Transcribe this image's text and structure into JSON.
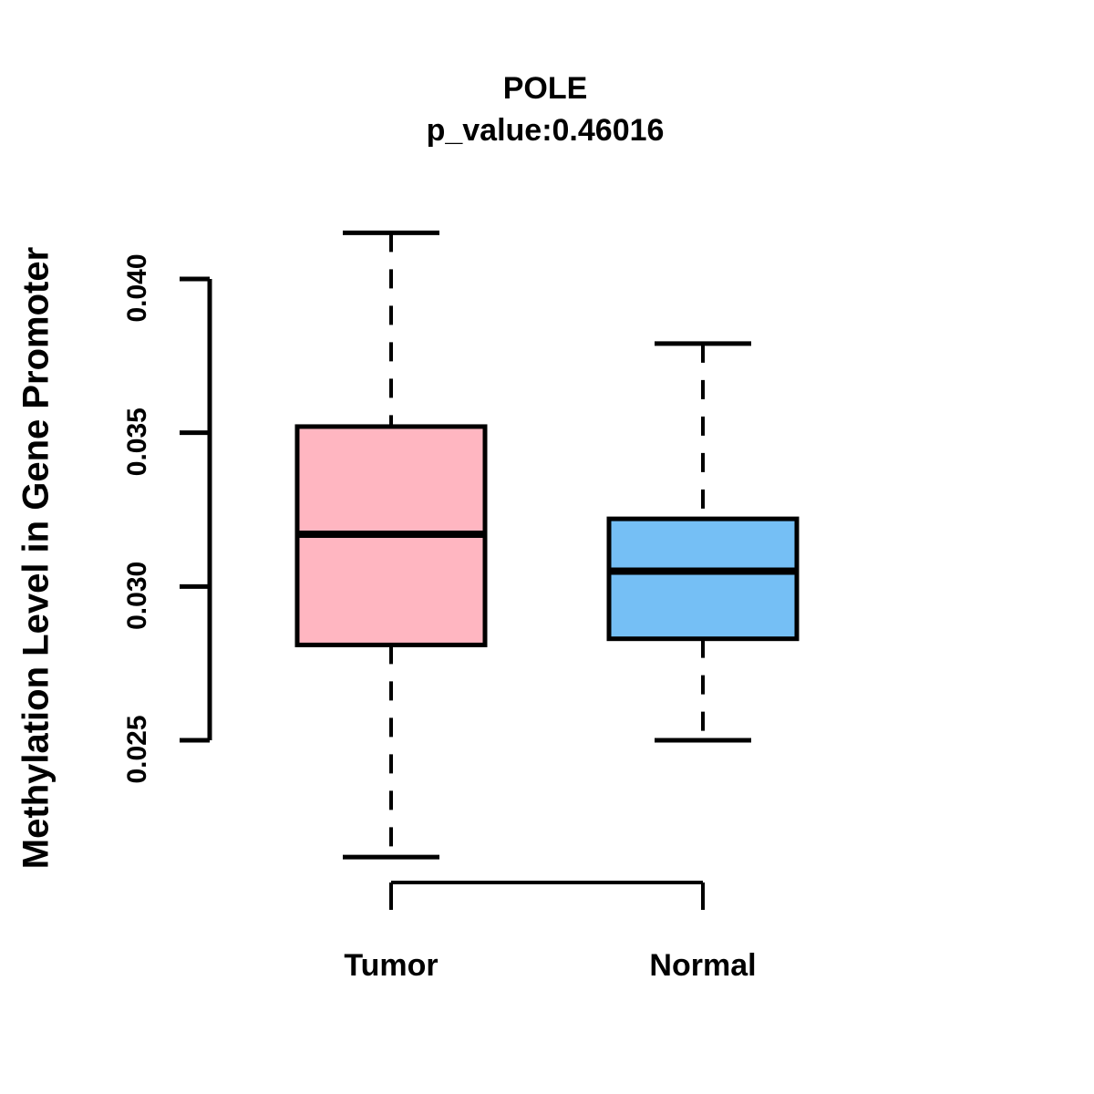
{
  "chart_data": {
    "type": "boxplot",
    "title": "POLE",
    "subtitle": "p_value:0.46016",
    "ylabel": "Methylation Level in Gene Promoter",
    "xlabel": "",
    "ylim": [
      0.025,
      0.04
    ],
    "yticks": [
      0.025,
      0.03,
      0.035,
      0.04
    ],
    "ytick_labels": [
      "0.025",
      "0.030",
      "0.035",
      "0.040"
    ],
    "categories": [
      "Tumor",
      "Normal"
    ],
    "grid": false,
    "legend": false,
    "series": [
      {
        "name": "Tumor",
        "color": "#FFB6C1",
        "whisker_low": 0.0212,
        "q1": 0.0281,
        "median": 0.0317,
        "q3": 0.0352,
        "whisker_high": 0.0415
      },
      {
        "name": "Normal",
        "color": "#75BFF5",
        "whisker_low": 0.025,
        "q1": 0.0283,
        "median": 0.0305,
        "q3": 0.0322,
        "whisker_high": 0.0379
      }
    ]
  }
}
